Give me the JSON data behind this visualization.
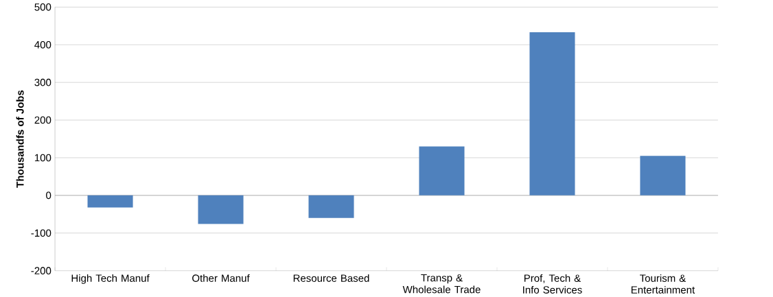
{
  "chart_data": {
    "type": "bar",
    "ylabel": "Thousandfs of Jobs",
    "categories": [
      "High Tech Manuf",
      "Other Manuf",
      "Resource Based",
      "Transp & Wholesale Trade",
      "Prof, Tech & Info Services",
      "Tourism & Entertainment"
    ],
    "values": [
      -32,
      -76,
      -60,
      130,
      433,
      105
    ],
    "color": "#4f81bd",
    "ylim": [
      -200,
      500
    ],
    "yticks": [
      -200,
      -100,
      0,
      100,
      200,
      300,
      400,
      500
    ],
    "grid": "y"
  }
}
